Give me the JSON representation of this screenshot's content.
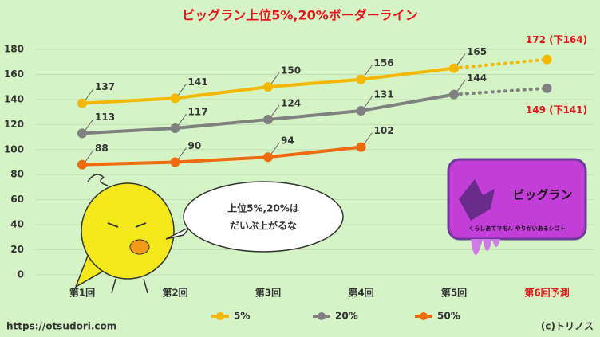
{
  "chart_data": {
    "type": "line",
    "title": "ビッグラン上位5%,20%ボーダーライン",
    "categories": [
      "第1回",
      "第2回",
      "第3回",
      "第4回",
      "第5回",
      "第6回予測"
    ],
    "series": [
      {
        "name": "5%",
        "color": "#f5b800",
        "values": [
          137,
          141,
          150,
          156,
          165,
          172
        ],
        "value_labels": [
          "137",
          "141",
          "150",
          "156",
          "165",
          "172 (下164)"
        ]
      },
      {
        "name": "20%",
        "color": "#808080",
        "values": [
          113,
          117,
          124,
          131,
          144,
          149
        ],
        "value_labels": [
          "113",
          "117",
          "124",
          "131",
          "144",
          "149 (下141)"
        ]
      },
      {
        "name": "50%",
        "color": "#f06a10",
        "values": [
          88,
          90,
          94,
          102,
          null,
          null
        ]
      }
    ],
    "ylim": [
      0,
      180
    ],
    "yticks": [
      0,
      20,
      40,
      60,
      80,
      100,
      120,
      140,
      160,
      180
    ],
    "grid": true,
    "legend": "bottom"
  },
  "speech_bubble": [
    "上位5%,20%は",
    "だいぶ上がるな"
  ],
  "logo": {
    "title": "ビッグラン",
    "caption": "くらしあてマモル やりがいあるシゴト"
  },
  "footer": {
    "url": "https://otsudori.com",
    "credit": "(c)トリノス"
  }
}
